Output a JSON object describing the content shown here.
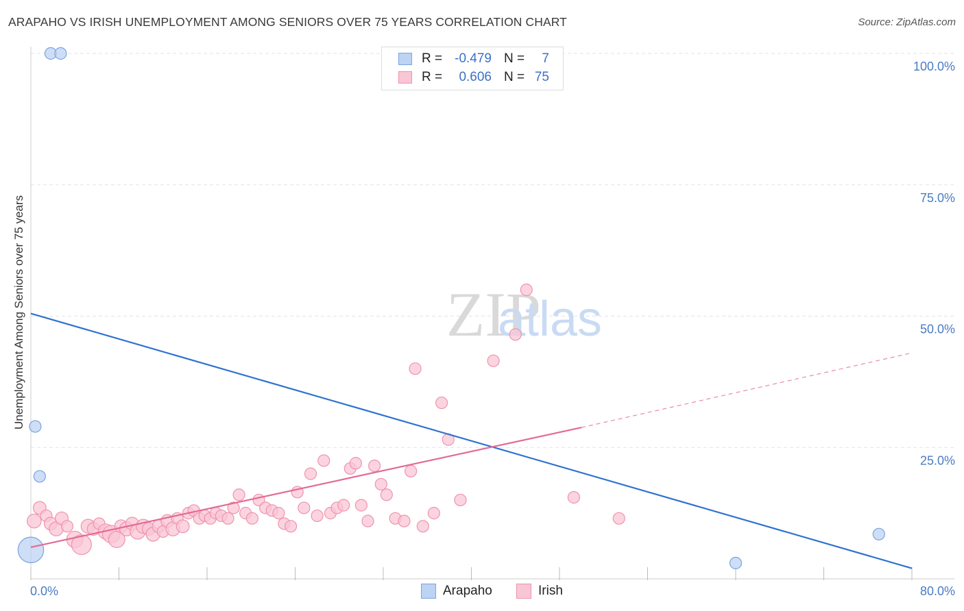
{
  "header": {
    "title": "ARAPAHO VS IRISH UNEMPLOYMENT AMONG SENIORS OVER 75 YEARS CORRELATION CHART",
    "source": "Source: ZipAtlas.com"
  },
  "watermark": {
    "zip": "ZIP",
    "atlas": "atlas"
  },
  "legend": {
    "rows": [
      {
        "r_label": "R =",
        "r_value": "-0.479",
        "n_label": "N =",
        "n_value": "7"
      },
      {
        "r_label": "R =",
        "r_value": "0.606",
        "n_label": "N =",
        "n_value": "75"
      }
    ]
  },
  "bottom_legend": {
    "arapaho": "Arapaho",
    "irish": "Irish"
  },
  "colors": {
    "arapaho_fill": "#bcd3f3",
    "arapaho_stroke": "#7ba3df",
    "arapaho_line": "#2f72d0",
    "irish_fill": "#f9c6d5",
    "irish_stroke": "#ee93ae",
    "irish_line": "#e36a94",
    "tick_text": "#4a7bc4",
    "grid": "#e3e3e3"
  },
  "chart_data": {
    "type": "scatter",
    "title": "ARAPAHO VS IRISH UNEMPLOYMENT AMONG SENIORS OVER 75 YEARS CORRELATION CHART",
    "xlabel": "",
    "ylabel": "Unemployment Among Seniors over 75 years",
    "xlim": [
      0,
      80
    ],
    "ylim": [
      0,
      100
    ],
    "x_tick_labels": [
      "0.0%",
      "80.0%"
    ],
    "y_ticks": [
      25,
      50,
      75,
      100
    ],
    "y_tick_labels": [
      "25.0%",
      "50.0%",
      "75.0%",
      "100.0%"
    ],
    "grid": true,
    "series": [
      {
        "name": "Arapaho",
        "r": -0.479,
        "n": 7,
        "points": [
          [
            0.0,
            5.5,
            2.2
          ],
          [
            0.4,
            29.0,
            1.0
          ],
          [
            0.8,
            19.5,
            1.0
          ],
          [
            1.8,
            100.0,
            1.0
          ],
          [
            2.7,
            100.0,
            1.0
          ],
          [
            64.0,
            3.0,
            1.0
          ],
          [
            77.0,
            8.5,
            1.0
          ]
        ],
        "trend": {
          "x1": 0.0,
          "y1": 50.5,
          "x2": 80.0,
          "y2": 2.0
        }
      },
      {
        "name": "Irish",
        "r": 0.606,
        "n": 75,
        "points": [
          [
            0.3,
            11.0,
            1.2
          ],
          [
            0.8,
            13.5,
            1.1
          ],
          [
            1.4,
            12.0,
            1.0
          ],
          [
            1.8,
            10.5,
            1.1
          ],
          [
            2.3,
            9.5,
            1.2
          ],
          [
            2.8,
            11.5,
            1.1
          ],
          [
            3.3,
            10.0,
            1.0
          ],
          [
            4.0,
            7.5,
            1.4
          ],
          [
            4.6,
            6.5,
            1.7
          ],
          [
            5.2,
            10.0,
            1.2
          ],
          [
            5.7,
            9.5,
            1.1
          ],
          [
            6.2,
            10.5,
            1.0
          ],
          [
            6.8,
            9.0,
            1.3
          ],
          [
            7.3,
            8.5,
            1.5
          ],
          [
            7.8,
            7.5,
            1.4
          ],
          [
            8.2,
            10.0,
            1.1
          ],
          [
            8.7,
            9.5,
            1.2
          ],
          [
            9.2,
            10.5,
            1.1
          ],
          [
            9.7,
            9.0,
            1.3
          ],
          [
            10.2,
            10.0,
            1.2
          ],
          [
            10.7,
            9.5,
            1.1
          ],
          [
            11.1,
            8.5,
            1.2
          ],
          [
            11.6,
            10.0,
            1.1
          ],
          [
            12.0,
            9.0,
            1.0
          ],
          [
            12.4,
            11.0,
            1.1
          ],
          [
            12.9,
            9.5,
            1.2
          ],
          [
            13.3,
            11.5,
            1.0
          ],
          [
            13.8,
            10.0,
            1.1
          ],
          [
            14.3,
            12.5,
            1.0
          ],
          [
            14.8,
            13.0,
            1.0
          ],
          [
            15.3,
            11.5,
            1.0
          ],
          [
            15.8,
            12.0,
            1.0
          ],
          [
            16.3,
            11.5,
            1.0
          ],
          [
            16.8,
            12.5,
            1.0
          ],
          [
            17.3,
            12.0,
            1.0
          ],
          [
            17.9,
            11.5,
            1.0
          ],
          [
            18.4,
            13.5,
            1.0
          ],
          [
            18.9,
            16.0,
            1.0
          ],
          [
            19.5,
            12.5,
            1.0
          ],
          [
            20.1,
            11.5,
            1.0
          ],
          [
            20.7,
            15.0,
            1.0
          ],
          [
            21.3,
            13.5,
            1.0
          ],
          [
            21.9,
            13.0,
            1.0
          ],
          [
            22.5,
            12.5,
            1.0
          ],
          [
            23.0,
            10.5,
            1.0
          ],
          [
            23.6,
            10.0,
            1.0
          ],
          [
            24.2,
            16.5,
            1.0
          ],
          [
            24.8,
            13.5,
            1.0
          ],
          [
            25.4,
            20.0,
            1.0
          ],
          [
            26.0,
            12.0,
            1.0
          ],
          [
            26.6,
            22.5,
            1.0
          ],
          [
            27.2,
            12.5,
            1.0
          ],
          [
            27.8,
            13.5,
            1.0
          ],
          [
            28.4,
            14.0,
            1.0
          ],
          [
            29.0,
            21.0,
            1.0
          ],
          [
            29.5,
            22.0,
            1.0
          ],
          [
            30.0,
            14.0,
            1.0
          ],
          [
            30.6,
            11.0,
            1.0
          ],
          [
            31.2,
            21.5,
            1.0
          ],
          [
            31.8,
            18.0,
            1.0
          ],
          [
            32.3,
            16.0,
            1.0
          ],
          [
            33.1,
            11.5,
            1.0
          ],
          [
            33.9,
            11.0,
            1.0
          ],
          [
            34.5,
            20.5,
            1.0
          ],
          [
            34.9,
            40.0,
            1.0
          ],
          [
            35.6,
            10.0,
            1.0
          ],
          [
            36.6,
            12.5,
            1.0
          ],
          [
            37.3,
            33.5,
            1.0
          ],
          [
            37.9,
            26.5,
            1.0
          ],
          [
            39.0,
            15.0,
            1.0
          ],
          [
            42.0,
            41.5,
            1.0
          ],
          [
            44.0,
            46.5,
            1.0
          ],
          [
            45.0,
            55.0,
            1.0
          ],
          [
            49.3,
            15.5,
            1.0
          ],
          [
            53.4,
            11.5,
            1.0
          ]
        ],
        "trend": {
          "x1": 0.0,
          "y1": 6.0,
          "x2": 50.0,
          "y2": 28.8
        },
        "trend_dashed": {
          "x1": 50.0,
          "y1": 28.8,
          "x2": 80.0,
          "y2": 43.0
        }
      }
    ]
  }
}
